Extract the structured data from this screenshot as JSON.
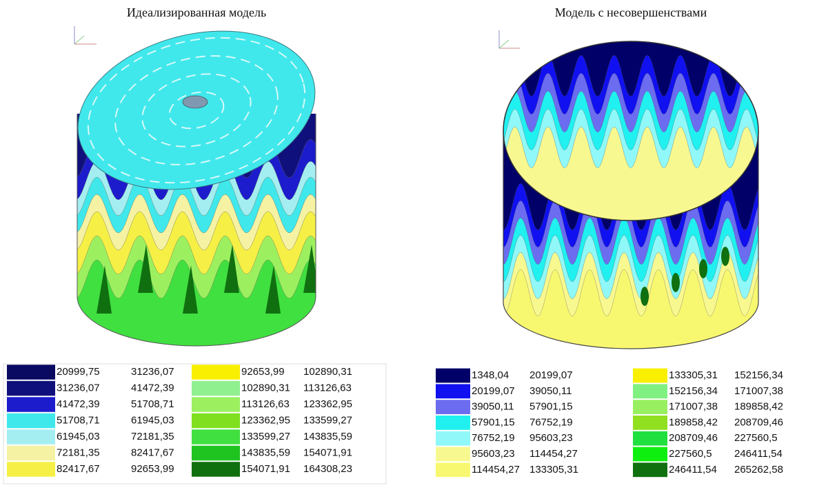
{
  "panels": [
    {
      "title": "Идеализированная модель",
      "legend": [
        {
          "color": "#0a0a62",
          "from": "20999,75",
          "to": "31236,07"
        },
        {
          "color": "#10107c",
          "from": "31236,07",
          "to": "41472,39"
        },
        {
          "color": "#1c1ccc",
          "from": "41472,39",
          "to": "51708,71"
        },
        {
          "color": "#40e8ec",
          "from": "51708,71",
          "to": "61945,03"
        },
        {
          "color": "#a4eef2",
          "from": "61945,03",
          "to": "72181,35"
        },
        {
          "color": "#f6f2a4",
          "from": "72181,35",
          "to": "82417,67"
        },
        {
          "color": "#f6f046",
          "from": "82417,67",
          "to": "92653,99"
        },
        {
          "color": "#f8f000",
          "from": "92653,99",
          "to": "102890,31"
        },
        {
          "color": "#90f090",
          "from": "102890,31",
          "to": "113126,63"
        },
        {
          "color": "#9cf060",
          "from": "113126,63",
          "to": "123362,95"
        },
        {
          "color": "#80e020",
          "from": "123362,95",
          "to": "133599,27"
        },
        {
          "color": "#40e040",
          "from": "133599,27",
          "to": "143835,59"
        },
        {
          "color": "#20c420",
          "from": "143835,59",
          "to": "154071,91"
        },
        {
          "color": "#107010",
          "from": "154071,91",
          "to": "164308,23"
        }
      ]
    },
    {
      "title": "Модель с несовершенствами",
      "legend": [
        {
          "color": "#000068",
          "from": "1348,04",
          "to": "20199,07"
        },
        {
          "color": "#1010f0",
          "from": "20199,07",
          "to": "39050,11"
        },
        {
          "color": "#6c6cf0",
          "from": "39050,11",
          "to": "57901,15"
        },
        {
          "color": "#20f0f0",
          "from": "57901,15",
          "to": "76752,19"
        },
        {
          "color": "#90f8f8",
          "from": "76752,19",
          "to": "95603,23"
        },
        {
          "color": "#f8f890",
          "from": "95603,23",
          "to": "114454,27"
        },
        {
          "color": "#f8f870",
          "from": "114454,27",
          "to": "133305,31"
        },
        {
          "color": "#f8f000",
          "from": "133305,31",
          "to": "152156,34"
        },
        {
          "color": "#80f080",
          "from": "152156,34",
          "to": "171007,38"
        },
        {
          "color": "#98f060",
          "from": "171007,38",
          "to": "189858,42"
        },
        {
          "color": "#90e020",
          "from": "189858,42",
          "to": "208709,46"
        },
        {
          "color": "#20e040",
          "from": "208709,46",
          "to": "227560,5"
        },
        {
          "color": "#10f010",
          "from": "227560,5",
          "to": "246411,54"
        },
        {
          "color": "#107010",
          "from": "246411,54",
          "to": "265262,58"
        }
      ]
    }
  ]
}
